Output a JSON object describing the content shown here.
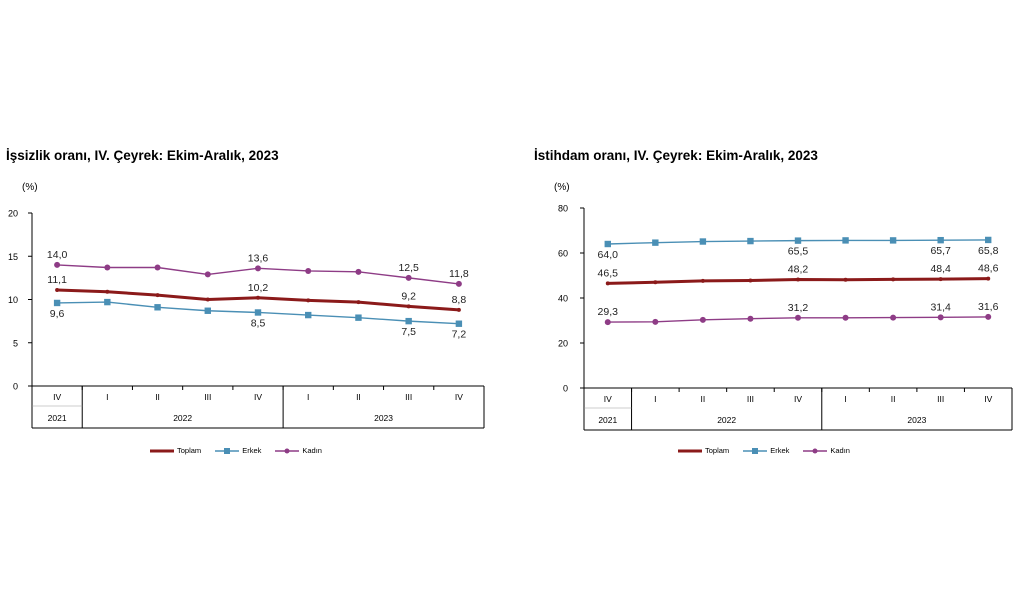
{
  "chart_data": [
    {
      "type": "line",
      "title": "İşsizlik oranı, IV. Çeyrek: Ekim-Aralık, 2023",
      "ylabel": "(%)",
      "ylim": [
        0,
        20
      ],
      "yticks": [
        "0",
        "5",
        "10",
        "15",
        "20"
      ],
      "quarters": [
        "IV",
        "I",
        "II",
        "III",
        "IV",
        "I",
        "II",
        "III",
        "IV"
      ],
      "years": [
        "2021",
        "2022",
        "2023"
      ],
      "series": [
        {
          "name": "Toplam",
          "color": "#8b1a1a",
          "marker": "none",
          "values": [
            11.1,
            10.9,
            10.5,
            10.0,
            10.2,
            9.9,
            9.7,
            9.2,
            8.8
          ],
          "labels": {
            "0": "11,1",
            "4": "10,2",
            "7": "9,2",
            "8": "8,8"
          }
        },
        {
          "name": "Erkek",
          "color": "#4a8fb5",
          "marker": "square",
          "values": [
            9.6,
            9.7,
            9.1,
            8.7,
            8.5,
            8.2,
            7.9,
            7.5,
            7.2
          ],
          "labels": {
            "0": "9,6",
            "4": "8,5",
            "7": "7,5",
            "8": "7,2"
          }
        },
        {
          "name": "Kadın",
          "color": "#8e3c86",
          "marker": "circle",
          "values": [
            14.0,
            13.7,
            13.7,
            12.9,
            13.6,
            13.3,
            13.2,
            12.5,
            11.8
          ],
          "labels": {
            "0": "14,0",
            "4": "13,6",
            "7": "12,5",
            "8": "11,8"
          }
        }
      ]
    },
    {
      "type": "line",
      "title": "İstihdam oranı, IV. Çeyrek: Ekim-Aralık, 2023",
      "ylabel": "(%)",
      "ylim": [
        0,
        80
      ],
      "yticks": [
        "0",
        "20",
        "40",
        "60",
        "80"
      ],
      "quarters": [
        "IV",
        "I",
        "II",
        "III",
        "IV",
        "I",
        "II",
        "III",
        "IV"
      ],
      "years": [
        "2021",
        "2022",
        "2023"
      ],
      "series": [
        {
          "name": "Toplam",
          "color": "#8b1a1a",
          "marker": "none",
          "values": [
            46.5,
            47.0,
            47.6,
            47.8,
            48.2,
            48.1,
            48.3,
            48.4,
            48.6
          ],
          "labels": {
            "0": "46,5",
            "4": "48,2",
            "7": "48,4",
            "8": "48,6"
          }
        },
        {
          "name": "Erkek",
          "color": "#4a8fb5",
          "marker": "square",
          "values": [
            64.0,
            64.6,
            65.1,
            65.3,
            65.5,
            65.6,
            65.6,
            65.7,
            65.8
          ],
          "labels": {
            "0": "64,0",
            "4": "65,5",
            "7": "65,7",
            "8": "65,8"
          }
        },
        {
          "name": "Kadın",
          "color": "#8e3c86",
          "marker": "circle",
          "values": [
            29.3,
            29.4,
            30.3,
            30.8,
            31.2,
            31.2,
            31.3,
            31.4,
            31.6
          ],
          "labels": {
            "0": "29,3",
            "4": "31,2",
            "7": "31,4",
            "8": "31,6"
          }
        }
      ]
    }
  ]
}
